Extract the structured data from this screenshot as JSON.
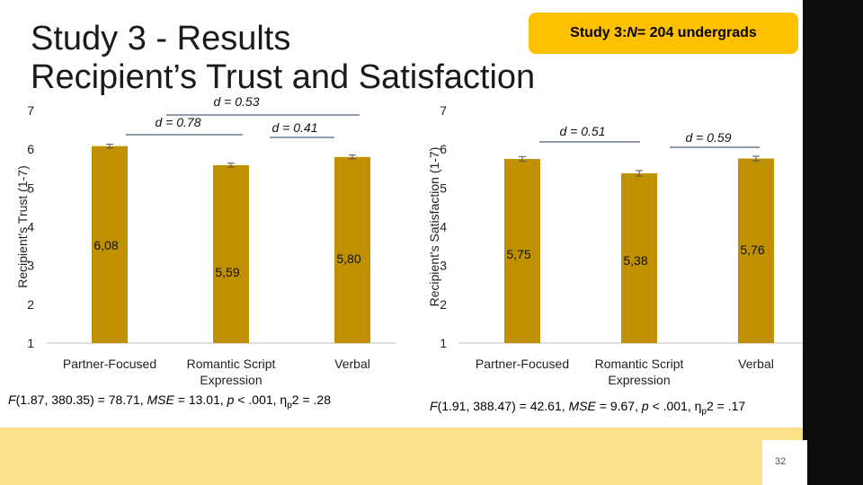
{
  "title_line1": "Study 3 - Results",
  "title_line2": "Recipient’s Trust and Satisfaction",
  "callout": {
    "prefix": "Study 3: ",
    "n_label": "N",
    "suffix": " = 204 undergrads"
  },
  "page_number": "32",
  "colors": {
    "bar": "#bf9000",
    "accent": "#ffc000",
    "strip": "#fde08a",
    "sidebar": "#0d0d0d",
    "bracket": "#1f3864"
  },
  "chart_data": [
    {
      "type": "bar",
      "categories": [
        "Partner-Focused",
        "Romantic Script Expression",
        "Verbal"
      ],
      "values": [
        6.08,
        5.59,
        5.8
      ],
      "value_labels": [
        "6,08",
        "5,59",
        "5,80"
      ],
      "errors": [
        0.05,
        0.05,
        0.05
      ],
      "ylabel": "Recipient's Trust (1-7)",
      "ylim": [
        1,
        7
      ],
      "yticks": [
        "1",
        "2",
        "3",
        "4",
        "5",
        "6",
        "7"
      ],
      "effect_sizes": [
        {
          "label": "d = 0.53",
          "from": 0,
          "to": 2
        },
        {
          "label": "d = 0.78",
          "from": 0,
          "to": 1
        },
        {
          "label": "d = 0.41",
          "from": 1,
          "to": 2
        }
      ],
      "stats": {
        "F": "F",
        "df": "(1.87, 380.35) = 78.71, ",
        "mse_label": "MSE",
        "mse": " = 13.01, ",
        "p_label": "p",
        "p": " < .001, η",
        "eta_sub": "p",
        "eta": "2 = .28"
      }
    },
    {
      "type": "bar",
      "categories": [
        "Partner-Focused",
        "Romantic Script Expression",
        "Verbal"
      ],
      "values": [
        5.75,
        5.38,
        5.76
      ],
      "value_labels": [
        "5,75",
        "5,38",
        "5,76"
      ],
      "errors": [
        0.06,
        0.07,
        0.06
      ],
      "ylabel": "Recipient's Satisfaction (1-7)",
      "ylim": [
        1,
        7
      ],
      "yticks": [
        "1",
        "2",
        "3",
        "4",
        "5",
        "6",
        "7"
      ],
      "effect_sizes": [
        {
          "label": "d = 0.51",
          "from": 0,
          "to": 1
        },
        {
          "label": "d = 0.59",
          "from": 1,
          "to": 2
        }
      ],
      "stats": {
        "F": "F",
        "df": "(1.91, 388.47) = 42.61, ",
        "mse_label": "MSE",
        "mse": " = 9.67, ",
        "p_label": "p",
        "p": " < .001, η",
        "eta_sub": "p",
        "eta": "2 = .17"
      }
    }
  ]
}
